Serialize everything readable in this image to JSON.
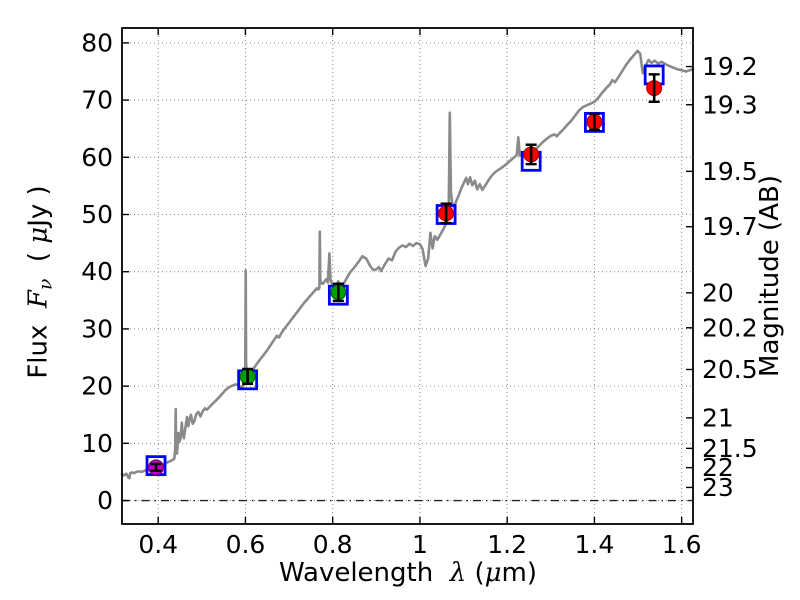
{
  "figure": {
    "background": "#ffffff",
    "frame_color": "#000000"
  },
  "chart_data": {
    "type": "line",
    "title": "",
    "xlabel_parts": {
      "word": "Wavelength",
      "lambda": "λ",
      "units_open": "(",
      "mu": "μ",
      "units_close": "m)"
    },
    "ylabel_left_parts": {
      "word": "Flux",
      "symbol": "F",
      "subscript": "ν",
      "units_open": "( ",
      "mu": "μ",
      "units_close": "Jy )"
    },
    "ylabel_right": "Magnitude (AB)",
    "x_axis": {
      "range": [
        0.317,
        1.626
      ],
      "ticks": [
        0.4,
        0.6,
        0.8,
        1.0,
        1.2,
        1.4,
        1.6
      ],
      "tick_labels": [
        "0.4",
        "0.6",
        "0.8",
        "1",
        "1.2",
        "1.4",
        "1.6"
      ]
    },
    "y_axis_left": {
      "range": [
        -4.1,
        82.6
      ],
      "ticks": [
        0,
        10,
        20,
        30,
        40,
        50,
        60,
        70,
        80
      ],
      "tick_labels": [
        "0",
        "10",
        "20",
        "30",
        "40",
        "50",
        "60",
        "70",
        "80"
      ]
    },
    "y_axis_right": {
      "ticks": [
        19.2,
        19.3,
        19.5,
        19.7,
        20,
        20.2,
        20.5,
        21,
        21.5,
        22,
        23
      ],
      "tick_labels": [
        "19.2",
        "19.3",
        "19.5",
        "19.7",
        "20",
        "20.2",
        "20.5",
        "21",
        "21.5",
        "22",
        "23"
      ],
      "ab_zeropoint_microjy": 23.9
    },
    "grid": {
      "on": true,
      "color": "#888888",
      "style": "dotted"
    },
    "zero_flux_line": {
      "flux": 0.0,
      "style": "dash-dot",
      "color": "#222222"
    },
    "spectrum": {
      "name": "model spectrum",
      "color": "#8a8a8a",
      "points": [
        [
          0.317,
          4.6
        ],
        [
          0.322,
          4.4
        ],
        [
          0.327,
          4.7
        ],
        [
          0.331,
          4.1
        ],
        [
          0.334,
          3.9
        ],
        [
          0.336,
          4.8
        ],
        [
          0.34,
          4.9
        ],
        [
          0.345,
          4.8
        ],
        [
          0.35,
          5.0
        ],
        [
          0.356,
          5.1
        ],
        [
          0.362,
          5.0
        ],
        [
          0.368,
          5.2
        ],
        [
          0.374,
          5.4
        ],
        [
          0.38,
          5.5
        ],
        [
          0.386,
          5.6
        ],
        [
          0.392,
          5.8
        ],
        [
          0.398,
          5.9
        ],
        [
          0.404,
          6.1
        ],
        [
          0.41,
          6.3
        ],
        [
          0.416,
          6.5
        ],
        [
          0.422,
          6.7
        ],
        [
          0.428,
          6.9
        ],
        [
          0.433,
          7.1
        ],
        [
          0.437,
          7.3
        ],
        [
          0.439,
          9.0
        ],
        [
          0.44,
          16.0
        ],
        [
          0.441,
          9.5
        ],
        [
          0.443,
          8.2
        ],
        [
          0.446,
          11.8
        ],
        [
          0.448,
          10.2
        ],
        [
          0.451,
          10.8
        ],
        [
          0.454,
          13.6
        ],
        [
          0.456,
          11.8
        ],
        [
          0.459,
          10.9
        ],
        [
          0.462,
          12.6
        ],
        [
          0.466,
          14.6
        ],
        [
          0.469,
          13.0
        ],
        [
          0.472,
          14.2
        ],
        [
          0.475,
          15.0
        ],
        [
          0.479,
          13.4
        ],
        [
          0.483,
          13.9
        ],
        [
          0.487,
          15.1
        ],
        [
          0.492,
          15.5
        ],
        [
          0.497,
          14.7
        ],
        [
          0.502,
          15.6
        ],
        [
          0.507,
          16.1
        ],
        [
          0.512,
          15.9
        ],
        [
          0.517,
          16.3
        ],
        [
          0.523,
          16.8
        ],
        [
          0.53,
          17.3
        ],
        [
          0.538,
          17.9
        ],
        [
          0.546,
          18.6
        ],
        [
          0.554,
          19.3
        ],
        [
          0.562,
          19.8
        ],
        [
          0.57,
          20.1
        ],
        [
          0.578,
          20.3
        ],
        [
          0.585,
          20.1
        ],
        [
          0.591,
          19.8
        ],
        [
          0.596,
          20.2
        ],
        [
          0.5995,
          20.6
        ],
        [
          0.6005,
          40.2
        ],
        [
          0.6015,
          24.0
        ],
        [
          0.603,
          22.3
        ],
        [
          0.606,
          21.9
        ],
        [
          0.61,
          22.2
        ],
        [
          0.618,
          23.0
        ],
        [
          0.626,
          23.9
        ],
        [
          0.634,
          24.7
        ],
        [
          0.642,
          25.5
        ],
        [
          0.65,
          26.3
        ],
        [
          0.658,
          27.2
        ],
        [
          0.666,
          28.1
        ],
        [
          0.672,
          28.8
        ],
        [
          0.677,
          28.5
        ],
        [
          0.682,
          29.2
        ],
        [
          0.688,
          29.9
        ],
        [
          0.695,
          30.6
        ],
        [
          0.703,
          31.4
        ],
        [
          0.711,
          32.2
        ],
        [
          0.719,
          33.0
        ],
        [
          0.727,
          33.8
        ],
        [
          0.735,
          34.6
        ],
        [
          0.743,
          35.3
        ],
        [
          0.751,
          36.0
        ],
        [
          0.759,
          36.7
        ],
        [
          0.764,
          37.1
        ],
        [
          0.767,
          36.9
        ],
        [
          0.7695,
          37.2
        ],
        [
          0.7705,
          47.0
        ],
        [
          0.7715,
          38.5
        ],
        [
          0.774,
          38.0
        ],
        [
          0.778,
          37.9
        ],
        [
          0.782,
          38.4
        ],
        [
          0.786,
          38.7
        ],
        [
          0.789,
          38.1
        ],
        [
          0.7925,
          43.2
        ],
        [
          0.795,
          38.6
        ],
        [
          0.799,
          37.7
        ],
        [
          0.804,
          37.0
        ],
        [
          0.809,
          37.2
        ],
        [
          0.8125,
          38.3
        ],
        [
          0.815,
          38.0
        ],
        [
          0.818,
          36.9
        ],
        [
          0.823,
          37.6
        ],
        [
          0.831,
          38.7
        ],
        [
          0.84,
          39.9
        ],
        [
          0.849,
          40.7
        ],
        [
          0.858,
          41.6
        ],
        [
          0.868,
          42.7
        ],
        [
          0.877,
          42.3
        ],
        [
          0.886,
          41.0
        ],
        [
          0.893,
          40.3
        ],
        [
          0.9,
          40.4
        ],
        [
          0.906,
          40.8
        ],
        [
          0.911,
          40.1
        ],
        [
          0.919,
          41.2
        ],
        [
          0.928,
          42.3
        ],
        [
          0.936,
          42.0
        ],
        [
          0.944,
          43.5
        ],
        [
          0.952,
          44.2
        ],
        [
          0.96,
          44.6
        ],
        [
          0.968,
          44.3
        ],
        [
          0.976,
          44.9
        ],
        [
          0.984,
          44.5
        ],
        [
          0.992,
          45.0
        ],
        [
          1.0,
          44.8
        ],
        [
          1.006,
          44.0
        ],
        [
          1.013,
          41.0
        ],
        [
          1.019,
          42.3
        ],
        [
          1.024,
          46.8
        ],
        [
          1.029,
          44.1
        ],
        [
          1.034,
          46.2
        ],
        [
          1.04,
          45.6
        ],
        [
          1.046,
          46.4
        ],
        [
          1.052,
          47.2
        ],
        [
          1.058,
          48.1
        ],
        [
          1.063,
          49.0
        ],
        [
          1.066,
          50.5
        ],
        [
          1.0685,
          67.8
        ],
        [
          1.071,
          54.0
        ],
        [
          1.074,
          52.0
        ],
        [
          1.078,
          51.2
        ],
        [
          1.083,
          52.3
        ],
        [
          1.089,
          53.4
        ],
        [
          1.095,
          54.6
        ],
        [
          1.101,
          55.6
        ],
        [
          1.106,
          56.4
        ],
        [
          1.11,
          55.3
        ],
        [
          1.115,
          56.5
        ],
        [
          1.12,
          55.1
        ],
        [
          1.126,
          55.9
        ],
        [
          1.131,
          54.4
        ],
        [
          1.137,
          55.3
        ],
        [
          1.143,
          54.3
        ],
        [
          1.15,
          55.1
        ],
        [
          1.158,
          56.1
        ],
        [
          1.166,
          56.9
        ],
        [
          1.174,
          57.5
        ],
        [
          1.182,
          57.9
        ],
        [
          1.19,
          58.3
        ],
        [
          1.198,
          58.8
        ],
        [
          1.207,
          59.4
        ],
        [
          1.216,
          60.0
        ],
        [
          1.222,
          60.4
        ],
        [
          1.2255,
          63.5
        ],
        [
          1.229,
          60.3
        ],
        [
          1.237,
          60.7
        ],
        [
          1.245,
          61.0
        ],
        [
          1.253,
          61.2
        ],
        [
          1.259,
          60.9
        ],
        [
          1.265,
          61.4
        ],
        [
          1.273,
          62.0
        ],
        [
          1.281,
          62.6
        ],
        [
          1.29,
          63.2
        ],
        [
          1.299,
          63.7
        ],
        [
          1.308,
          64.0
        ],
        [
          1.314,
          63.7
        ],
        [
          1.32,
          64.2
        ],
        [
          1.329,
          64.9
        ],
        [
          1.338,
          65.7
        ],
        [
          1.347,
          66.4
        ],
        [
          1.356,
          67.3
        ],
        [
          1.365,
          68.2
        ],
        [
          1.374,
          68.8
        ],
        [
          1.383,
          69.1
        ],
        [
          1.392,
          69.4
        ],
        [
          1.4,
          69.7
        ],
        [
          1.409,
          70.4
        ],
        [
          1.418,
          71.3
        ],
        [
          1.427,
          72.1
        ],
        [
          1.435,
          72.7
        ],
        [
          1.441,
          73.5
        ],
        [
          1.447,
          73.1
        ],
        [
          1.455,
          74.0
        ],
        [
          1.464,
          75.1
        ],
        [
          1.473,
          76.2
        ],
        [
          1.482,
          77.1
        ],
        [
          1.491,
          77.9
        ],
        [
          1.499,
          78.6
        ],
        [
          1.505,
          78.1
        ],
        [
          1.511,
          74.7
        ],
        [
          1.517,
          76.0
        ],
        [
          1.524,
          77.0
        ],
        [
          1.531,
          76.5
        ],
        [
          1.538,
          76.9
        ],
        [
          1.546,
          76.4
        ],
        [
          1.554,
          76.7
        ],
        [
          1.562,
          76.3
        ],
        [
          1.571,
          76.0
        ],
        [
          1.58,
          75.7
        ],
        [
          1.59,
          75.4
        ],
        [
          1.6,
          75.2
        ],
        [
          1.61,
          75.0
        ],
        [
          1.618,
          75.2
        ],
        [
          1.626,
          75.4
        ]
      ]
    },
    "observed_photometry": {
      "name": "observed fluxes",
      "points": [
        {
          "wavelength": 0.395,
          "flux": 5.8,
          "error": 0.6,
          "fill": "#bf00bf",
          "edge": "#7d007d"
        },
        {
          "wavelength": 0.605,
          "flux": 21.7,
          "error": 1.3,
          "fill": "#00a000",
          "edge": "#006400"
        },
        {
          "wavelength": 0.813,
          "flux": 36.4,
          "error": 1.5,
          "fill": "#00a000",
          "edge": "#006400"
        },
        {
          "wavelength": 1.06,
          "flux": 50.2,
          "error": 1.7,
          "fill": "#ff0000",
          "edge": "#b30000"
        },
        {
          "wavelength": 1.255,
          "flux": 60.5,
          "error": 1.7,
          "fill": "#ff0000",
          "edge": "#b30000"
        },
        {
          "wavelength": 1.4,
          "flux": 66.2,
          "error": 1.4,
          "fill": "#ff0000",
          "edge": "#b30000"
        },
        {
          "wavelength": 1.537,
          "flux": 72.1,
          "error": 2.4,
          "fill": "#ff0000",
          "edge": "#b30000"
        }
      ]
    },
    "model_photometry": {
      "name": "model fluxes",
      "marker_color": "#0000ff",
      "points": [
        {
          "wavelength": 0.395,
          "flux": 6.1
        },
        {
          "wavelength": 0.605,
          "flux": 21.1
        },
        {
          "wavelength": 0.813,
          "flux": 35.9
        },
        {
          "wavelength": 1.06,
          "flux": 50.0
        },
        {
          "wavelength": 1.255,
          "flux": 59.3
        },
        {
          "wavelength": 1.4,
          "flux": 66.1
        },
        {
          "wavelength": 1.537,
          "flux": 74.4
        }
      ]
    }
  }
}
